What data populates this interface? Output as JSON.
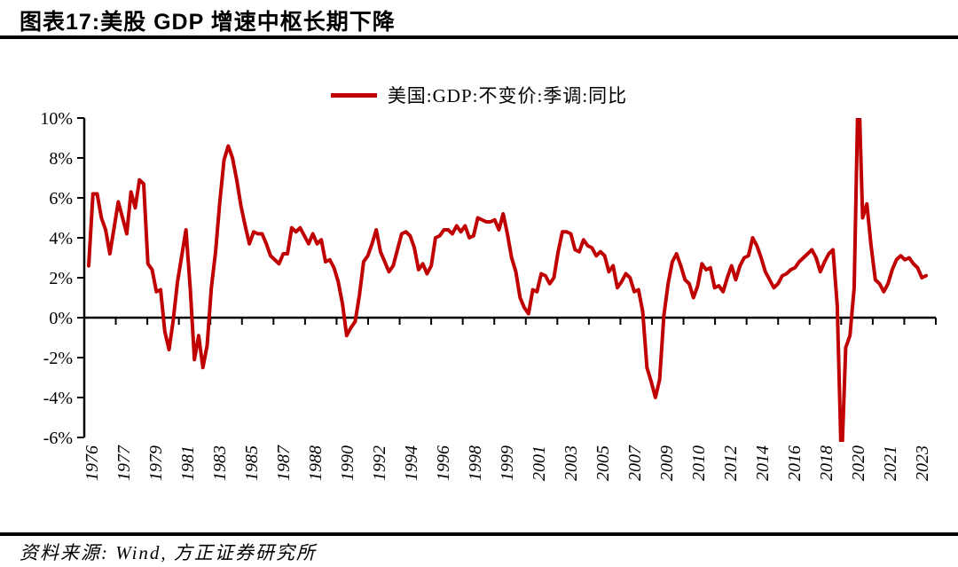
{
  "header": {
    "title": "图表17:美股 GDP 增速中枢长期下降"
  },
  "legend": {
    "series_label": "美国:GDP:不变价:季调:同比"
  },
  "footer": {
    "source": "资料来源: Wind, 方正证券研究所"
  },
  "chart_data": {
    "type": "line",
    "title": "美股 GDP 增速中枢长期下降",
    "x_unit": "quarter (1975Q4–2025Q2)",
    "frequency": "quarterly",
    "grid": false,
    "legend_position": "top-center",
    "color": "#C00000",
    "ylim": [
      -6,
      10
    ],
    "y_tick_values": [
      10,
      8,
      6,
      4,
      2,
      0,
      -2,
      -4,
      -6
    ],
    "y_tick_labels": [
      "10%",
      "8%",
      "6%",
      "4%",
      "2%",
      "0%",
      "-2%",
      "-4%",
      "-6%"
    ],
    "x_tick_labels": [
      "1976",
      "1977",
      "1979",
      "1981",
      "1983",
      "1985",
      "1987",
      "1988",
      "1990",
      "1992",
      "1994",
      "1996",
      "1998",
      "1999",
      "2001",
      "2003",
      "2005",
      "2007",
      "2009",
      "2010",
      "2012",
      "2014",
      "2016",
      "2018",
      "2020",
      "2021",
      "2023"
    ],
    "series": [
      {
        "name": "美国:GDP:不变价:季调:同比",
        "values": [
          2.6,
          6.2,
          6.2,
          5.0,
          4.4,
          3.2,
          4.5,
          5.8,
          5.0,
          4.2,
          6.3,
          5.5,
          6.9,
          6.7,
          2.7,
          2.4,
          1.3,
          1.4,
          -0.7,
          -1.6,
          -0.1,
          1.8,
          3.1,
          4.4,
          1.5,
          -2.1,
          -0.9,
          -2.5,
          -1.4,
          1.5,
          3.3,
          5.8,
          7.9,
          8.6,
          8.0,
          6.9,
          5.6,
          4.6,
          3.7,
          4.3,
          4.2,
          4.2,
          3.7,
          3.1,
          2.9,
          2.7,
          3.2,
          3.2,
          4.5,
          4.3,
          4.5,
          4.1,
          3.7,
          4.2,
          3.7,
          3.9,
          2.8,
          2.9,
          2.5,
          1.8,
          0.7,
          -0.9,
          -0.5,
          -0.2,
          1.1,
          2.8,
          3.1,
          3.7,
          4.4,
          3.3,
          2.8,
          2.3,
          2.6,
          3.4,
          4.2,
          4.3,
          4.1,
          3.5,
          2.4,
          2.7,
          2.2,
          2.6,
          4.0,
          4.1,
          4.4,
          4.4,
          4.2,
          4.6,
          4.3,
          4.6,
          4.0,
          4.1,
          5.0,
          4.9,
          4.8,
          4.8,
          4.9,
          4.4,
          5.2,
          4.2,
          3.0,
          2.3,
          1.0,
          0.5,
          0.2,
          1.4,
          1.3,
          2.2,
          2.1,
          1.7,
          2.0,
          3.3,
          4.3,
          4.3,
          4.2,
          3.4,
          3.3,
          3.9,
          3.6,
          3.5,
          3.1,
          3.3,
          3.1,
          2.3,
          2.6,
          1.5,
          1.8,
          2.2,
          2.0,
          1.3,
          1.4,
          0.3,
          -2.5,
          -3.2,
          -4.0,
          -3.1,
          0.1,
          1.7,
          2.8,
          3.2,
          2.6,
          1.9,
          1.7,
          1.0,
          1.6,
          2.7,
          2.4,
          2.5,
          1.5,
          1.6,
          1.3,
          2.0,
          2.6,
          1.9,
          2.6,
          3.0,
          3.1,
          4.0,
          3.6,
          3.0,
          2.3,
          1.9,
          1.5,
          1.7,
          2.1,
          2.2,
          2.4,
          2.5,
          2.8,
          3.0,
          3.2,
          3.4,
          3.0,
          2.3,
          2.8,
          3.2,
          3.4,
          0.6,
          -7.5,
          -1.5,
          -0.9,
          1.5,
          12.2,
          5.0,
          5.7,
          3.6,
          1.9,
          1.7,
          1.3,
          1.7,
          2.4,
          2.9,
          3.1,
          2.9,
          3.0,
          2.7,
          2.5,
          2.0,
          2.1
        ]
      }
    ]
  }
}
